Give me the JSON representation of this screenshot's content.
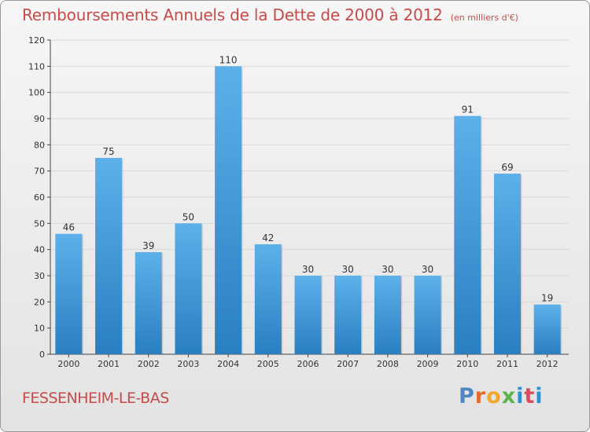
{
  "title": "Remboursements Annuels de la Dette de 2000 à 2012",
  "unit": "(en milliers d'€)",
  "commune": "FESSENHEIM-LE-BAS",
  "brand": {
    "p": "P",
    "r": "r",
    "o": "o",
    "x": "x",
    "i": "i",
    "t": "t",
    "i2": "i"
  },
  "colors": {
    "title": "#c84a4a",
    "bar_top": "#5eb0ea",
    "bar_bottom": "#2a7fc0",
    "grid": "#d8d8d8",
    "axis": "#444444"
  },
  "chart_data": {
    "type": "bar",
    "title": "Remboursements Annuels de la Dette de 2000 à 2012",
    "categories": [
      "2000",
      "2001",
      "2002",
      "2003",
      "2004",
      "2005",
      "2006",
      "2007",
      "2008",
      "2009",
      "2010",
      "2011",
      "2012"
    ],
    "values": [
      46,
      75,
      39,
      50,
      110,
      42,
      30,
      30,
      30,
      30,
      91,
      69,
      19
    ],
    "ylim": [
      0,
      120
    ],
    "yticks": [
      0,
      10,
      20,
      30,
      40,
      50,
      60,
      70,
      80,
      90,
      100,
      110,
      120
    ],
    "grid": true,
    "data_labels": true
  }
}
